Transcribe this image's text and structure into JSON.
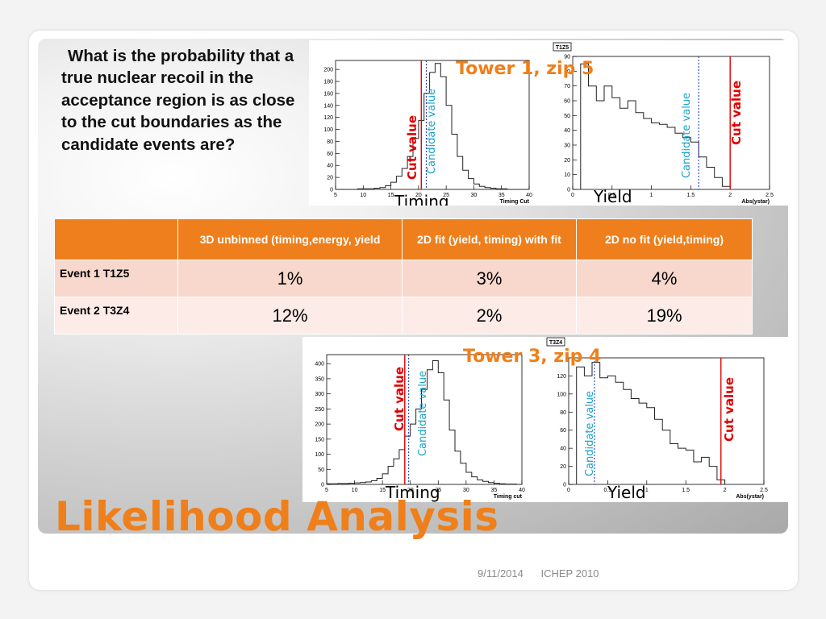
{
  "slide": {
    "question": "What is the probability that a true nuclear recoil in the acceptance region is as close to the cut boundaries as the candidate events are?",
    "title": "Likelihood Analysis",
    "footer_date": "9/11/2014",
    "footer_conf": "ICHEP 2010"
  },
  "annotations": {
    "cut_label": "Cut value",
    "candidate_label": "Candidate value",
    "timing_label": "Timing",
    "yield_label": "Yield"
  },
  "colors": {
    "accent": "#ef7f1a",
    "cut_line": "#e00000",
    "candidate_line": "#1f3fcf",
    "candidate_text": "#19a2c7"
  },
  "table": {
    "headers": [
      "",
      "3D unbinned (timing,energy, yield",
      "2D fit (yield, timing) with fit",
      "2D no fit (yield,timing)"
    ],
    "rows": [
      {
        "label": "Event 1 T1Z5",
        "values": [
          "1%",
          "3%",
          "4%"
        ]
      },
      {
        "label": "Event 2 T3Z4",
        "values": [
          "12%",
          "2%",
          "19%"
        ]
      }
    ]
  },
  "chart_data": [
    {
      "id": "t1z5",
      "type": "bar",
      "heading": "Tower 1, zip 5",
      "tag": "T1Z5",
      "timing": {
        "xlabel": "Timing Cut",
        "xlim": [
          5,
          40
        ],
        "ylim": [
          0,
          215
        ],
        "xticks": [
          5,
          10,
          15,
          20,
          25,
          30,
          35,
          40
        ],
        "yticks": [
          0,
          20,
          40,
          60,
          80,
          100,
          120,
          140,
          160,
          180,
          200
        ],
        "cut": 20.5,
        "candidate": 21.4,
        "bins": [
          5,
          6,
          7,
          8,
          9,
          10,
          11,
          12,
          13,
          14,
          15,
          16,
          17,
          18,
          19,
          20,
          21,
          22,
          23,
          24,
          25,
          26,
          27,
          28,
          29,
          30,
          31,
          32,
          33,
          34,
          35,
          36,
          37,
          38,
          39
        ],
        "values": [
          0,
          0,
          0,
          0,
          1,
          1,
          1,
          2,
          3,
          6,
          12,
          22,
          35,
          55,
          85,
          115,
          160,
          195,
          210,
          188,
          140,
          92,
          55,
          32,
          18,
          9,
          5,
          3,
          2,
          1,
          1,
          0,
          0,
          0,
          0
        ]
      },
      "yield": {
        "xlabel": "Abs(ystar)",
        "xlim": [
          0,
          2.5
        ],
        "ylim": [
          0,
          90
        ],
        "xticks": [
          0,
          0.5,
          1,
          1.5,
          2,
          2.5
        ],
        "yticks": [
          0,
          10,
          20,
          30,
          40,
          50,
          60,
          70,
          80,
          90
        ],
        "cut": 2.0,
        "candidate": 1.6,
        "bins": [
          0.1,
          0.2,
          0.3,
          0.4,
          0.5,
          0.6,
          0.7,
          0.8,
          0.9,
          1.0,
          1.1,
          1.2,
          1.3,
          1.4,
          1.5,
          1.6,
          1.7,
          1.8,
          1.9
        ],
        "values": [
          85,
          70,
          60,
          70,
          62,
          55,
          60,
          52,
          48,
          45,
          44,
          42,
          38,
          35,
          32,
          22,
          15,
          8,
          2
        ]
      }
    },
    {
      "id": "t3z4",
      "type": "bar",
      "heading": "Tower 3, zip 4",
      "tag": "T3Z4",
      "timing": {
        "xlabel": "Timing cut",
        "xlim": [
          5,
          40
        ],
        "ylim": [
          0,
          430
        ],
        "xticks": [
          5,
          10,
          15,
          20,
          25,
          30,
          35,
          40
        ],
        "yticks": [
          0,
          50,
          100,
          150,
          200,
          250,
          300,
          350,
          400
        ],
        "cut": 19.0,
        "candidate": 19.7,
        "bins": [
          5,
          6,
          7,
          8,
          9,
          10,
          11,
          12,
          13,
          14,
          15,
          16,
          17,
          18,
          19,
          20,
          21,
          22,
          23,
          24,
          25,
          26,
          27,
          28,
          29,
          30,
          31,
          32,
          33,
          34,
          35,
          36,
          37,
          38,
          39
        ],
        "values": [
          2,
          2,
          3,
          3,
          4,
          5,
          6,
          8,
          12,
          20,
          35,
          60,
          85,
          115,
          160,
          200,
          250,
          315,
          380,
          410,
          370,
          280,
          180,
          110,
          70,
          40,
          25,
          15,
          10,
          6,
          4,
          2,
          1,
          1,
          0
        ]
      },
      "yield": {
        "xlabel": "Abs(ystar)",
        "xlim": [
          0,
          2.5
        ],
        "ylim": [
          0,
          140
        ],
        "xticks": [
          0,
          0.5,
          1,
          1.5,
          2,
          2.5
        ],
        "yticks": [
          0,
          20,
          40,
          60,
          80,
          100,
          120
        ],
        "cut": 1.95,
        "candidate": 0.33,
        "bins": [
          0.1,
          0.2,
          0.3,
          0.4,
          0.5,
          0.6,
          0.7,
          0.8,
          0.9,
          1.0,
          1.1,
          1.2,
          1.3,
          1.4,
          1.5,
          1.6,
          1.7,
          1.8,
          1.9
        ],
        "values": [
          130,
          120,
          135,
          118,
          120,
          113,
          105,
          95,
          90,
          85,
          72,
          60,
          45,
          40,
          38,
          25,
          30,
          20,
          5
        ]
      }
    }
  ]
}
